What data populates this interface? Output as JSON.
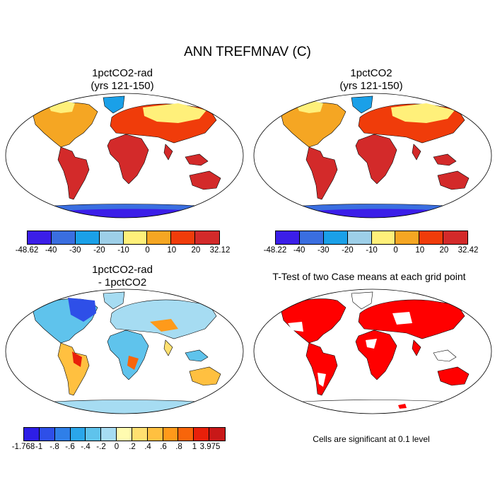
{
  "title": "ANN TREFMNAV (C)",
  "panels": [
    {
      "id": "p1",
      "title_line1": "1pctCO2-rad",
      "title_line2": "(yrs 121-150)",
      "icon": "world-map-icon"
    },
    {
      "id": "p2",
      "title_line1": "1pctCO2",
      "title_line2": "(yrs 121-150)",
      "icon": "world-map-icon"
    },
    {
      "id": "p3",
      "title_line1": "1pctCO2-rad",
      "title_line2": "- 1pctCO2",
      "icon": "world-map-icon"
    },
    {
      "id": "p4",
      "title_line1": "T-Test of two Case means at each grid point",
      "icon": "world-map-icon"
    }
  ],
  "colorbars": {
    "abs1": {
      "labels": [
        "-48.62",
        "-40",
        "-30",
        "-20",
        "-10",
        "0",
        "10",
        "20",
        "32.12"
      ],
      "colors": [
        "#3b1ee8",
        "#3a6ee0",
        "#1aa0e8",
        "#9dcfe8",
        "#fff07a",
        "#f5a623",
        "#f03c0a",
        "#d32a2a"
      ]
    },
    "abs2": {
      "labels": [
        "-48.22",
        "-40",
        "-30",
        "-20",
        "-10",
        "0",
        "10",
        "20",
        "32.42"
      ],
      "colors": [
        "#3b1ee8",
        "#3a6ee0",
        "#1aa0e8",
        "#9dcfe8",
        "#fff07a",
        "#f5a623",
        "#f03c0a",
        "#d32a2a"
      ]
    },
    "diff": {
      "labels": [
        "-1.768",
        "-1",
        "-.8",
        "-.6",
        "-.4",
        "-.2",
        "0",
        ".2",
        ".4",
        ".6",
        ".8",
        "1",
        "3.975"
      ],
      "colors": [
        "#2d1ee6",
        "#2e4fe8",
        "#2f7fe8",
        "#2aa6ea",
        "#5fc3ec",
        "#a6dcf2",
        "#fffbb0",
        "#ffe070",
        "#ffc040",
        "#ff9a1a",
        "#f8650a",
        "#e8200a",
        "#c81818"
      ]
    }
  },
  "significance_note": "Cells are significant at 0.1 level",
  "colors": {
    "significant": "#ff0000",
    "background": "#ffffff"
  }
}
